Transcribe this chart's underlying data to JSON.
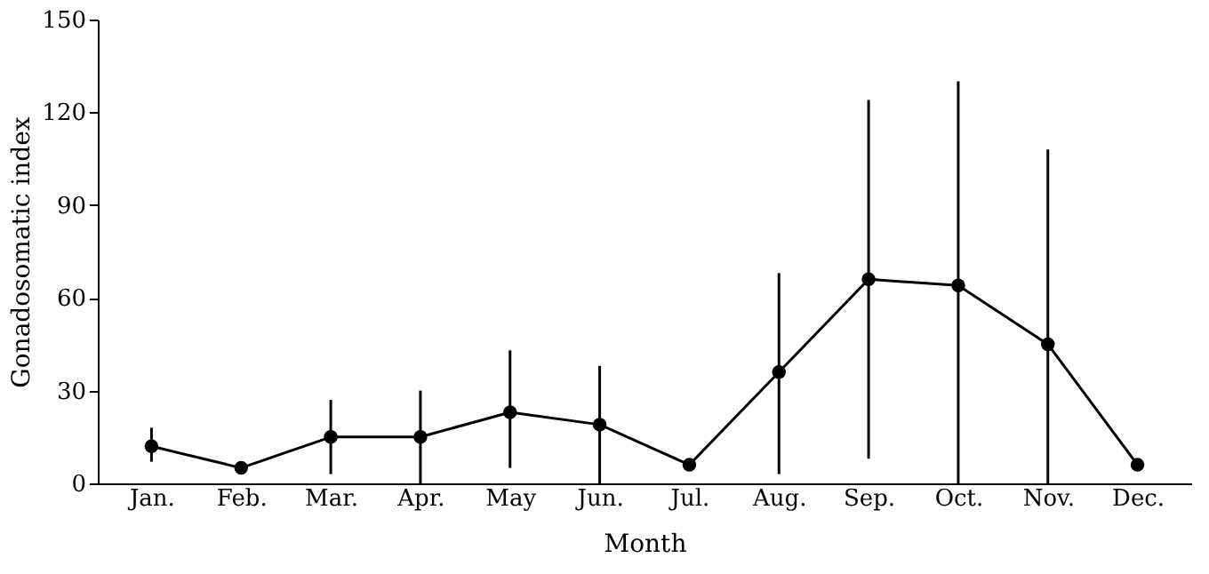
{
  "chart_data": {
    "type": "line",
    "xlabel": "Month",
    "ylabel": "Gonadosomatic index",
    "categories": [
      "Jan.",
      "Feb.",
      "Mar.",
      "Apr.",
      "May",
      "Jun.",
      "Jul.",
      "Aug.",
      "Sep.",
      "Oct.",
      "Nov.",
      "Dec."
    ],
    "values": [
      12,
      5,
      15,
      15,
      23,
      19,
      6,
      36,
      66,
      64,
      45,
      6
    ],
    "errors": [
      [
        7,
        18
      ],
      [
        4,
        7
      ],
      [
        3,
        27
      ],
      [
        0,
        30
      ],
      [
        5,
        43
      ],
      [
        0,
        38
      ],
      null,
      [
        3,
        68
      ],
      [
        8,
        124
      ],
      [
        0,
        130
      ],
      [
        0,
        108
      ],
      null
    ],
    "color": "#000000",
    "marker": "circle",
    "line_style": "solid",
    "grid": false,
    "ylim": [
      0,
      150
    ],
    "yticks": [
      0,
      30,
      60,
      90,
      120,
      150
    ]
  }
}
